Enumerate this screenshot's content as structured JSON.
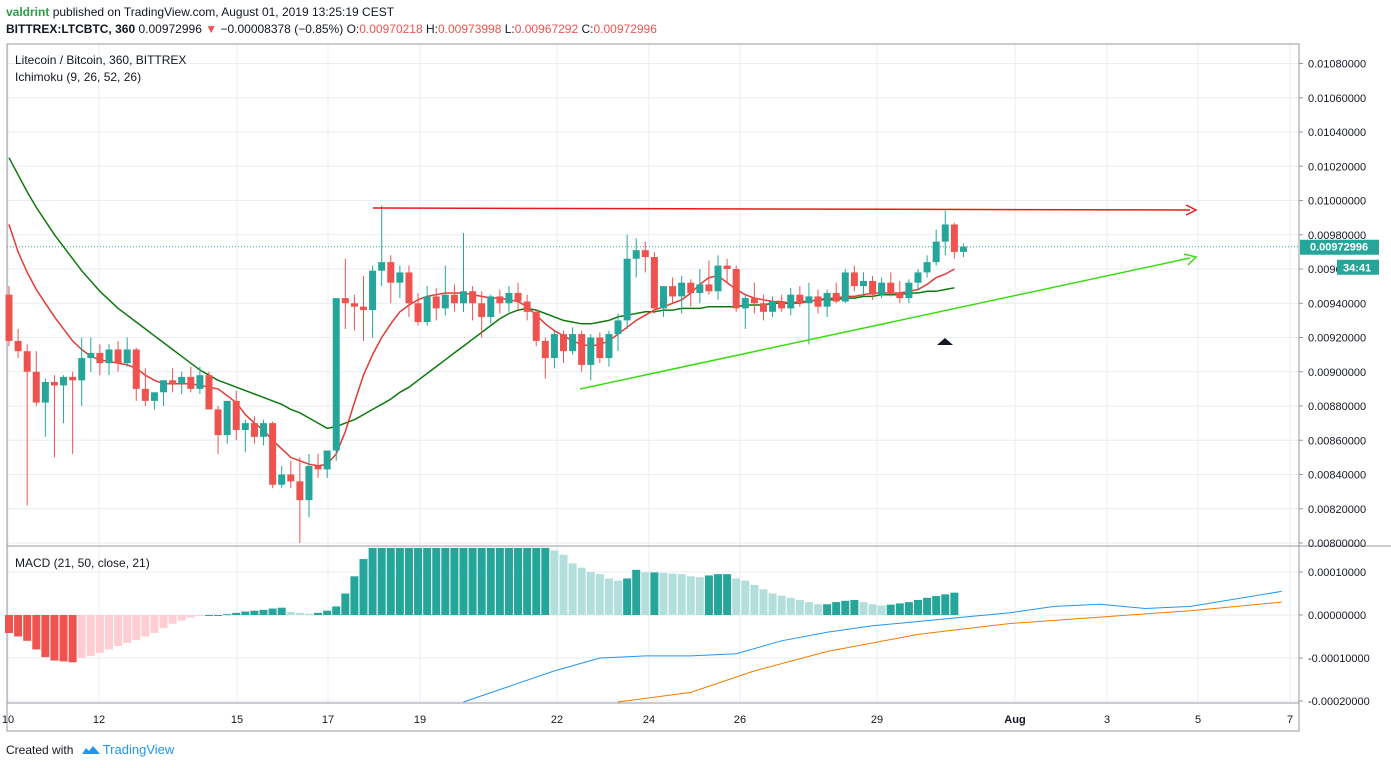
{
  "header": {
    "author": "valdrint",
    "published_text": "published on TradingView.com, August 01, 2019 13:25:19 CEST",
    "symbol": "BITTREX:LTCBTC, 360",
    "last": "0.00972996",
    "change": "−0.00008378 (−0.85%)",
    "o_label": "O:",
    "o_value": "0.00970218",
    "h_label": "H:",
    "h_value": "0.00973998",
    "l_label": "L:",
    "l_value": "0.00967292",
    "c_label": "C:",
    "c_value": "0.00972996"
  },
  "legend": {
    "title": "Litecoin / Bitcoin, 360, BITTREX",
    "indicator": "Ichimoku (9, 26, 52, 26)",
    "macd": "MACD (21, 50, close, 21)"
  },
  "footer": {
    "created_with": "Created with",
    "brand": "TradingView"
  },
  "badges": {
    "price": "0.00972996",
    "countdown": "34:41"
  },
  "colors": {
    "up": "#26a69a",
    "down": "#ef5350",
    "tenkan": "#e53935",
    "kijun": "#0c7a0c",
    "resistance": "#e8191a",
    "support": "#3cdc14",
    "macd": "#2196f3",
    "signal": "#f57c00",
    "hist_up_strong": "#26a69a",
    "hist_up_weak": "#b2dfdb",
    "hist_down_strong": "#ef5350",
    "hist_down_weak": "#ffcdd2"
  },
  "chart_data": {
    "type": "candlestick",
    "title": "Litecoin / Bitcoin, 360, BITTREX",
    "x_ticks": [
      "10",
      "12",
      "15",
      "17",
      "19",
      "22",
      "24",
      "26",
      "29",
      "Aug",
      "3",
      "5",
      "7"
    ],
    "y_ticks_price": [
      "0.00800000",
      "0.00820000",
      "0.00840000",
      "0.00860000",
      "0.00880000",
      "0.00900000",
      "0.00920000",
      "0.00940000",
      "0.00960000",
      "0.00980000",
      "0.01000000",
      "0.01020000",
      "0.01040000",
      "0.01060000",
      "0.01080000"
    ],
    "y_ticks_macd": [
      "0.00010000",
      "0.00000000",
      "-0.00010000",
      "-0.00020000"
    ],
    "price_ylim": [
      0.008,
      0.0109
    ],
    "macd_ylim": [
      -0.0002,
      0.000156
    ],
    "candles": [
      [
        0.00945,
        0.0095,
        0.00915,
        0.00918
      ],
      [
        0.00918,
        0.00925,
        0.00908,
        0.00912
      ],
      [
        0.00912,
        0.00916,
        0.00822,
        0.009
      ],
      [
        0.009,
        0.00912,
        0.0088,
        0.00882
      ],
      [
        0.00882,
        0.00896,
        0.00862,
        0.00894
      ],
      [
        0.00894,
        0.00898,
        0.0085,
        0.00892
      ],
      [
        0.00892,
        0.00898,
        0.0087,
        0.00897
      ],
      [
        0.00897,
        0.009,
        0.00852,
        0.00895
      ],
      [
        0.00895,
        0.0092,
        0.0088,
        0.00908
      ],
      [
        0.00908,
        0.0092,
        0.009,
        0.00911
      ],
      [
        0.00911,
        0.00916,
        0.00898,
        0.00905
      ],
      [
        0.00905,
        0.00916,
        0.00898,
        0.00913
      ],
      [
        0.00913,
        0.00918,
        0.009,
        0.00905
      ],
      [
        0.00905,
        0.0092,
        0.00903,
        0.00913
      ],
      [
        0.00913,
        0.00914,
        0.00883,
        0.0089
      ],
      [
        0.0089,
        0.00902,
        0.0088,
        0.00883
      ],
      [
        0.00883,
        0.00888,
        0.00878,
        0.00888
      ],
      [
        0.00888,
        0.00895,
        0.0088,
        0.00895
      ],
      [
        0.00895,
        0.00902,
        0.00888,
        0.00893
      ],
      [
        0.00893,
        0.009,
        0.00887,
        0.00897
      ],
      [
        0.00897,
        0.00903,
        0.00888,
        0.0089
      ],
      [
        0.0089,
        0.00903,
        0.00887,
        0.00898
      ],
      [
        0.00898,
        0.009,
        0.00878,
        0.00878
      ],
      [
        0.00878,
        0.0088,
        0.00852,
        0.00863
      ],
      [
        0.00863,
        0.00883,
        0.00858,
        0.00883
      ],
      [
        0.00883,
        0.00889,
        0.0086,
        0.00866
      ],
      [
        0.00866,
        0.00872,
        0.00853,
        0.0087
      ],
      [
        0.0087,
        0.00874,
        0.00858,
        0.00862
      ],
      [
        0.00862,
        0.00872,
        0.00857,
        0.0087
      ],
      [
        0.0087,
        0.00871,
        0.00832,
        0.00834
      ],
      [
        0.00834,
        0.00845,
        0.00832,
        0.0084
      ],
      [
        0.0084,
        0.00848,
        0.00832,
        0.00836
      ],
      [
        0.00836,
        0.0085,
        0.008,
        0.00825
      ],
      [
        0.00825,
        0.00852,
        0.00815,
        0.00845
      ],
      [
        0.00845,
        0.00852,
        0.00838,
        0.00843
      ],
      [
        0.00843,
        0.00854,
        0.00838,
        0.00854
      ],
      [
        0.00854,
        0.00942,
        0.00848,
        0.00943
      ],
      [
        0.00943,
        0.00966,
        0.00925,
        0.0094
      ],
      [
        0.0094,
        0.00945,
        0.00924,
        0.00938
      ],
      [
        0.00938,
        0.00956,
        0.00918,
        0.00936
      ],
      [
        0.00936,
        0.00962,
        0.0092,
        0.00959
      ],
      [
        0.00959,
        0.00997,
        0.0095,
        0.00964
      ],
      [
        0.00964,
        0.00968,
        0.0094,
        0.00952
      ],
      [
        0.00952,
        0.00962,
        0.00943,
        0.00958
      ],
      [
        0.00958,
        0.00962,
        0.00932,
        0.0094
      ],
      [
        0.0094,
        0.00946,
        0.00927,
        0.00929
      ],
      [
        0.00929,
        0.0095,
        0.00927,
        0.00944
      ],
      [
        0.00944,
        0.00949,
        0.0093,
        0.00937
      ],
      [
        0.00937,
        0.00962,
        0.00933,
        0.00945
      ],
      [
        0.00945,
        0.00951,
        0.00935,
        0.0094
      ],
      [
        0.0094,
        0.00981,
        0.00935,
        0.00947
      ],
      [
        0.00947,
        0.0095,
        0.0093,
        0.0094
      ],
      [
        0.0094,
        0.00947,
        0.0092,
        0.00932
      ],
      [
        0.00932,
        0.00945,
        0.00928,
        0.00944
      ],
      [
        0.00944,
        0.00948,
        0.00934,
        0.0094
      ],
      [
        0.0094,
        0.0095,
        0.00935,
        0.00946
      ],
      [
        0.00946,
        0.00952,
        0.00936,
        0.00941
      ],
      [
        0.00941,
        0.00945,
        0.0093,
        0.00935
      ],
      [
        0.00935,
        0.00936,
        0.00915,
        0.00918
      ],
      [
        0.00918,
        0.0092,
        0.00896,
        0.00908
      ],
      [
        0.00908,
        0.00924,
        0.00902,
        0.00922
      ],
      [
        0.00922,
        0.00924,
        0.00905,
        0.00912
      ],
      [
        0.00912,
        0.00926,
        0.0091,
        0.00922
      ],
      [
        0.00922,
        0.00924,
        0.009,
        0.00904
      ],
      [
        0.00904,
        0.00922,
        0.00895,
        0.0092
      ],
      [
        0.0092,
        0.00923,
        0.00905,
        0.00908
      ],
      [
        0.00908,
        0.00924,
        0.00903,
        0.00922
      ],
      [
        0.00922,
        0.00934,
        0.00912,
        0.0093
      ],
      [
        0.0093,
        0.0098,
        0.00925,
        0.00966
      ],
      [
        0.00966,
        0.00978,
        0.00955,
        0.00971
      ],
      [
        0.00971,
        0.00976,
        0.00958,
        0.00967
      ],
      [
        0.00967,
        0.0097,
        0.00934,
        0.00937
      ],
      [
        0.00937,
        0.0095,
        0.00932,
        0.0095
      ],
      [
        0.0095,
        0.00955,
        0.0094,
        0.00944
      ],
      [
        0.00944,
        0.00956,
        0.00934,
        0.00952
      ],
      [
        0.00952,
        0.00954,
        0.00938,
        0.00946
      ],
      [
        0.00946,
        0.0096,
        0.0094,
        0.00951
      ],
      [
        0.00951,
        0.00965,
        0.00945,
        0.00947
      ],
      [
        0.00947,
        0.00968,
        0.00942,
        0.00962
      ],
      [
        0.00962,
        0.00966,
        0.00952,
        0.0096
      ],
      [
        0.0096,
        0.00962,
        0.00935,
        0.00937
      ],
      [
        0.00937,
        0.00945,
        0.00925,
        0.00943
      ],
      [
        0.00943,
        0.00952,
        0.00934,
        0.0094
      ],
      [
        0.0094,
        0.00945,
        0.0093,
        0.00935
      ],
      [
        0.00935,
        0.00944,
        0.00932,
        0.00941
      ],
      [
        0.00941,
        0.00945,
        0.00935,
        0.00937
      ],
      [
        0.00937,
        0.00949,
        0.00933,
        0.00945
      ],
      [
        0.00945,
        0.0095,
        0.00938,
        0.0094
      ],
      [
        0.0094,
        0.00952,
        0.00916,
        0.00944
      ],
      [
        0.00944,
        0.00948,
        0.00934,
        0.00938
      ],
      [
        0.00938,
        0.00948,
        0.00932,
        0.00946
      ],
      [
        0.00946,
        0.00952,
        0.0094,
        0.00941
      ],
      [
        0.00941,
        0.0096,
        0.0094,
        0.00958
      ],
      [
        0.00958,
        0.00962,
        0.00947,
        0.0095
      ],
      [
        0.0095,
        0.00958,
        0.00945,
        0.00953
      ],
      [
        0.00953,
        0.00956,
        0.00942,
        0.00945
      ],
      [
        0.00945,
        0.00955,
        0.00943,
        0.00952
      ],
      [
        0.00952,
        0.00958,
        0.00944,
        0.00946
      ],
      [
        0.00946,
        0.00953,
        0.0094,
        0.00943
      ],
      [
        0.00943,
        0.00954,
        0.0094,
        0.00952
      ],
      [
        0.00952,
        0.0096,
        0.00948,
        0.00958
      ],
      [
        0.00958,
        0.00968,
        0.00955,
        0.00964
      ],
      [
        0.00964,
        0.00983,
        0.00962,
        0.00976
      ],
      [
        0.00976,
        0.00994,
        0.00968,
        0.00986
      ],
      [
        0.00986,
        0.00987,
        0.00966,
        0.0097
      ],
      [
        0.0097,
        0.00975,
        0.00967,
        0.00973
      ]
    ],
    "tenkan": [
      0.00986,
      0.0097,
      0.00958,
      0.00948,
      0.0094,
      0.00932,
      0.00925,
      0.00918,
      0.00913,
      0.00909,
      0.00907,
      0.00906,
      0.00905,
      0.00904,
      0.00902,
      0.00898,
      0.00895,
      0.00893,
      0.00893,
      0.00893,
      0.00893,
      0.00892,
      0.00891,
      0.0089,
      0.00886,
      0.00882,
      0.00875,
      0.0087,
      0.00866,
      0.0086,
      0.00855,
      0.0085,
      0.00848,
      0.00846,
      0.00845,
      0.00846,
      0.00852,
      0.00865,
      0.00882,
      0.00898,
      0.0091,
      0.0092,
      0.00928,
      0.00935,
      0.00939,
      0.00942,
      0.00944,
      0.00945,
      0.00946,
      0.00946,
      0.00946,
      0.00945,
      0.00944,
      0.00943,
      0.00943,
      0.00942,
      0.00941,
      0.00938,
      0.00933,
      0.00928,
      0.00924,
      0.00921,
      0.00918,
      0.00916,
      0.00915,
      0.00916,
      0.00918,
      0.00922,
      0.00926,
      0.0093,
      0.00933,
      0.00936,
      0.00938,
      0.0094,
      0.00942,
      0.00946,
      0.00951,
      0.00955,
      0.00956,
      0.00952,
      0.00948,
      0.00945,
      0.00943,
      0.00942,
      0.00941,
      0.00941,
      0.0094,
      0.0094,
      0.00941,
      0.00942,
      0.00943,
      0.00943,
      0.00944,
      0.00944,
      0.00945,
      0.00946,
      0.00946,
      0.00946,
      0.00946,
      0.00947,
      0.00948,
      0.00951,
      0.00955,
      0.00957,
      0.0096
    ],
    "kijun": [
      0.01025,
      0.01015,
      0.01005,
      0.00996,
      0.00988,
      0.0098,
      0.00973,
      0.00966,
      0.00959,
      0.00953,
      0.00947,
      0.00942,
      0.00937,
      0.00933,
      0.00929,
      0.00925,
      0.00921,
      0.00917,
      0.00913,
      0.00909,
      0.00905,
      0.00901,
      0.00898,
      0.00895,
      0.00893,
      0.00891,
      0.00889,
      0.00887,
      0.00885,
      0.00883,
      0.00881,
      0.00878,
      0.00876,
      0.00873,
      0.0087,
      0.00867,
      0.00868,
      0.0087,
      0.00872,
      0.00875,
      0.00878,
      0.00881,
      0.00884,
      0.00888,
      0.00891,
      0.00895,
      0.00899,
      0.00903,
      0.00907,
      0.00911,
      0.00915,
      0.00919,
      0.00923,
      0.00927,
      0.00931,
      0.00934,
      0.00936,
      0.00937,
      0.00936,
      0.00934,
      0.00932,
      0.0093,
      0.00929,
      0.00928,
      0.00928,
      0.00929,
      0.0093,
      0.00932,
      0.00933,
      0.00934,
      0.00935,
      0.00935,
      0.00936,
      0.00936,
      0.00937,
      0.00937,
      0.00937,
      0.00938,
      0.00938,
      0.00938,
      0.00938,
      0.00939,
      0.00939,
      0.00939,
      0.0094,
      0.0094,
      0.0094,
      0.00941,
      0.00941,
      0.00942,
      0.00942,
      0.00942,
      0.00943,
      0.00943,
      0.00944,
      0.00944,
      0.00945,
      0.00945,
      0.00945,
      0.00946,
      0.00946,
      0.00947,
      0.00947,
      0.00948,
      0.00949
    ],
    "macd_hist": [
      -4.2e-05,
      -5e-05,
      -6e-05,
      -8e-05,
      -9.8e-05,
      -0.000106,
      -0.000108,
      -0.00011,
      -0.0001,
      -9.5e-05,
      -8.8e-05,
      -8e-05,
      -7.2e-05,
      -6.5e-05,
      -5.8e-05,
      -5e-05,
      -4.2e-05,
      -3e-05,
      -2e-05,
      -1.3e-05,
      -6e-06,
      -2e-06,
      0.0,
      0.0,
      2e-06,
      5e-06,
      8e-06,
      1e-05,
      1.2e-05,
      1.5e-05,
      1.7e-05,
      7e-06,
      5e-06,
      3e-06,
      5e-06,
      1e-05,
      2e-05,
      5e-05,
      9e-05,
      0.00013,
      0.000156,
      0.000156,
      0.000156,
      0.000156,
      0.000156,
      0.000156,
      0.000156,
      0.000156,
      0.000156,
      0.000156,
      0.000156,
      0.000156,
      0.000156,
      0.000156,
      0.000156,
      0.000156,
      0.000156,
      0.000156,
      0.000156,
      0.000156,
      0.00015,
      0.00014,
      0.00012,
      0.00011,
      0.0001,
      9.5e-05,
      8.5e-05,
      8e-05,
      8.5e-05,
      0.000105,
      9.9e-05,
      9.9e-05,
      9.8e-05,
      9.6e-05,
      9.5e-05,
      9e-05,
      8.8e-05,
      9.2e-05,
      9.5e-05,
      9.5e-05,
      8.5e-05,
      8e-05,
      7e-05,
      6e-05,
      5e-05,
      4.5e-05,
      4e-05,
      3.5e-05,
      3e-05,
      2.5e-05,
      2.5e-05,
      3e-05,
      3.3e-05,
      3.5e-05,
      3e-05,
      2.5e-05,
      2.2e-05,
      2.4e-05,
      2.7e-05,
      3e-05,
      3.5e-05,
      4e-05,
      4.4e-05,
      4.8e-05,
      5.2e-05
    ],
    "macd_line": [
      [
        50,
        -0.00022
      ],
      [
        60,
        -0.00013
      ],
      [
        65,
        -0.0001
      ],
      [
        70,
        -9.5e-05
      ],
      [
        75,
        -9.5e-05
      ],
      [
        80,
        -9e-05
      ],
      [
        85,
        -6e-05
      ],
      [
        90,
        -4e-05
      ],
      [
        95,
        -2.5e-05
      ],
      [
        100,
        -1.5e-05
      ],
      [
        105,
        -5e-06
      ],
      [
        110,
        5e-06
      ],
      [
        115,
        2e-05
      ],
      [
        120,
        2.5e-05
      ],
      [
        125,
        1.5e-05
      ],
      [
        130,
        2e-05
      ],
      [
        140,
        5.5e-05
      ]
    ],
    "signal_line": [
      [
        67,
        -0.00022
      ],
      [
        75,
        -0.00018
      ],
      [
        82,
        -0.00013
      ],
      [
        90,
        -8.5e-05
      ],
      [
        100,
        -4.5e-05
      ],
      [
        110,
        -2e-05
      ],
      [
        120,
        -5e-06
      ],
      [
        130,
        1e-05
      ],
      [
        140,
        3e-05
      ]
    ]
  }
}
